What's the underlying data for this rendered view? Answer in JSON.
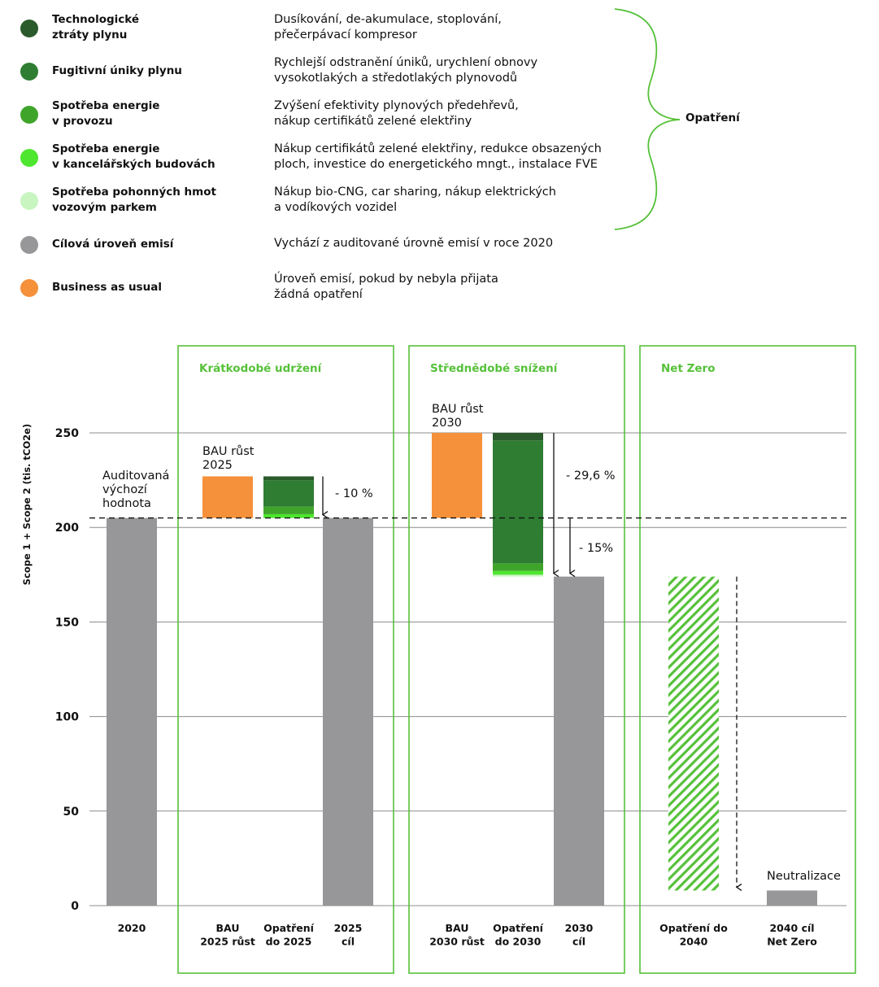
{
  "legend": [
    {
      "name": "Technologické\nztráty plynu",
      "desc": "Dusíkování, de-akumulace, stoplování,\npřečerpávací kompresor",
      "color": "#2b5a2c"
    },
    {
      "name": "Fugitivní úniky plynu",
      "desc": "Rychlejší odstranění úniků, urychlení obnovy\nvysokotlakých a středotlakých plynovodů",
      "color": "#2e7d32"
    },
    {
      "name": "Spotřeba energie\nv provozu",
      "desc": "Zvýšení efektivity plynových předehřevů,\nnákup certifikátů zelené elektřiny",
      "color": "#3fa52a"
    },
    {
      "name": "Spotřeba energie\nv kancelářských budovách",
      "desc": "Nákup certifikátů zelené elektřiny, redukce obsazených\nploch, investice do energetického mngt., instalace FVE",
      "color": "#4ee62f"
    },
    {
      "name": "Spotřeba pohonných hmot\nvozovým parkem",
      "desc": "Nákup bio-CNG, car sharing, nákup elektrických\na vodíkových vozidel",
      "color": "#c8f5c0"
    },
    {
      "name": "Cílová úroveň emisí",
      "desc": "Vychází z auditované úrovně emisí v roce 2020",
      "color": "#97979a"
    },
    {
      "name": "Business as usual",
      "desc": "Úroveň emisí, pokud by nebyla přijata\nžádná opatření",
      "color": "#f5913a"
    }
  ],
  "brace_label": "Opatření",
  "chart_data": {
    "type": "bar",
    "subtype": "waterfall",
    "ylabel": "Scope 1 + Scope 2 (tis. tCO2e)",
    "ylim": [
      0,
      250
    ],
    "yticks": [
      0,
      50,
      100,
      150,
      200,
      250
    ],
    "grid": true,
    "baseline_value": 205,
    "sections": [
      "Krátkodobé udržení",
      "Střednědobé snížení",
      "Net Zero"
    ],
    "categories": [
      "2020",
      "BAU\n2025 růst",
      "Opatření\ndo 2025",
      "2025\ncíl",
      "BAU\n2030 růst",
      "Opatření\ndo 2030",
      "2030\ncíl",
      "Opatření do\n2040",
      "2040 cíl\nNet Zero"
    ],
    "bars": [
      {
        "category": "2020",
        "segments": [
          {
            "from": 0,
            "to": 205,
            "series": "Cílová úroveň emisí"
          }
        ]
      },
      {
        "category": "BAU 2025 růst",
        "segments": [
          {
            "from": 205,
            "to": 227,
            "series": "Business as usual"
          }
        ]
      },
      {
        "category": "Opatření do 2025",
        "segments": [
          {
            "from": 205,
            "to": 207,
            "series": "Spotřeba energie v kancelářských budovách"
          },
          {
            "from": 207,
            "to": 211,
            "series": "Spotřeba energie v provozu"
          },
          {
            "from": 211,
            "to": 225,
            "series": "Fugitivní úniky plynu"
          },
          {
            "from": 225,
            "to": 227,
            "series": "Technologické ztráty plynu"
          }
        ]
      },
      {
        "category": "2025 cíl",
        "segments": [
          {
            "from": 0,
            "to": 205,
            "series": "Cílová úroveň emisí"
          }
        ]
      },
      {
        "category": "BAU 2030 růst",
        "segments": [
          {
            "from": 205,
            "to": 250,
            "series": "Business as usual"
          }
        ]
      },
      {
        "category": "Opatření do 2030",
        "segments": [
          {
            "from": 174,
            "to": 175,
            "series": "Spotřeba pohonných hmot vozovým parkem"
          },
          {
            "from": 175,
            "to": 177,
            "series": "Spotřeba energie v kancelářských budovách"
          },
          {
            "from": 177,
            "to": 181,
            "series": "Spotřeba energie v provozu"
          },
          {
            "from": 181,
            "to": 246,
            "series": "Fugitivní úniky plynu"
          },
          {
            "from": 246,
            "to": 250,
            "series": "Technologické ztráty plynu"
          }
        ]
      },
      {
        "category": "2030 cíl",
        "segments": [
          {
            "from": 0,
            "to": 174,
            "series": "Cílová úroveň emisí"
          }
        ]
      },
      {
        "category": "Opatření do 2040",
        "segments": [
          {
            "from": 8,
            "to": 174,
            "series": "Opatření (hatched)"
          }
        ]
      },
      {
        "category": "2040 cíl Net Zero",
        "segments": [
          {
            "from": 0,
            "to": 8,
            "series": "Cílová úroveň emisí"
          }
        ]
      }
    ],
    "annotations": [
      {
        "text": "Auditovaná\nvýchozí\nhodnota",
        "anchor": "2020"
      },
      {
        "text": "BAU růst\n2025",
        "anchor": "BAU 2025 růst"
      },
      {
        "text": "- 10 %",
        "anchor": "Opatření do 2025"
      },
      {
        "text": "BAU růst\n2030",
        "anchor": "BAU 2030 růst"
      },
      {
        "text": "- 29,6 %",
        "anchor": "Opatření do 2030"
      },
      {
        "text": "- 15%",
        "anchor": "2030 cíl"
      },
      {
        "text": "Neutralizace",
        "anchor": "2040 cíl Net Zero"
      }
    ]
  }
}
